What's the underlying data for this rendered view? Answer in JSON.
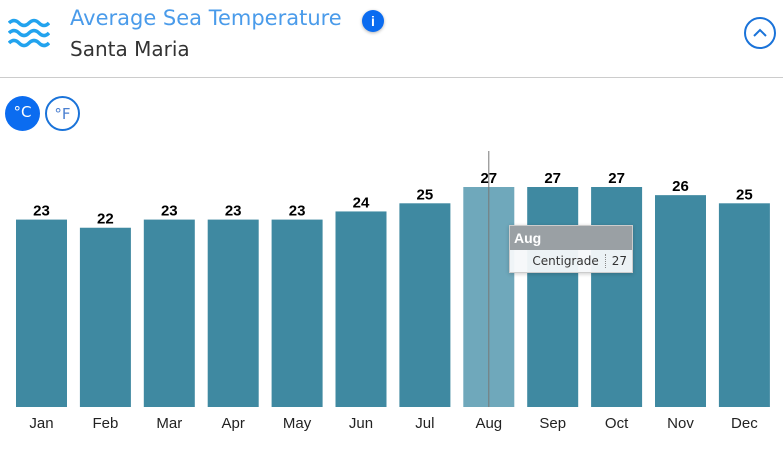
{
  "header": {
    "title": "Average Sea Temperature",
    "subtitle": "Santa Maria",
    "icon": "waves-icon",
    "info": "i"
  },
  "units": {
    "celsius": "°C",
    "fahrenheit": "°F",
    "selected": "celsius"
  },
  "colors": {
    "bar": "#3f89a1",
    "bar_hover": "#6fa8bb",
    "accent": "#0b6cf0"
  },
  "tooltip": {
    "month": "Aug",
    "series": "Centigrade",
    "value": "27"
  },
  "chart_data": {
    "type": "bar",
    "categories": [
      "Jan",
      "Feb",
      "Mar",
      "Apr",
      "May",
      "Jun",
      "Jul",
      "Aug",
      "Sep",
      "Oct",
      "Nov",
      "Dec"
    ],
    "series": [
      {
        "name": "Centigrade",
        "values": [
          23,
          22,
          23,
          23,
          23,
          24,
          25,
          27,
          27,
          27,
          26,
          25
        ]
      }
    ],
    "ylim": [
      0,
      27
    ],
    "grid": false,
    "highlighted": "Aug"
  }
}
